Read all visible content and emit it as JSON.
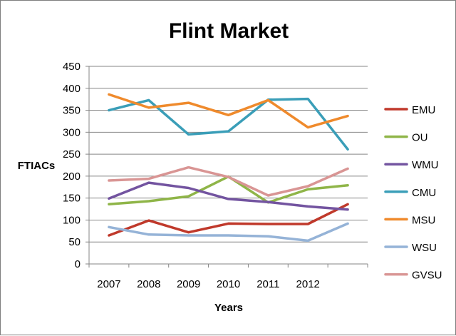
{
  "chart_data": {
    "type": "line",
    "title": "Flint Market",
    "xlabel": "Years",
    "ylabel": "FTIACs",
    "categories": [
      "2007",
      "2008",
      "2009",
      "2010",
      "2011",
      "2012",
      ""
    ],
    "ylim": [
      0,
      450
    ],
    "yticks": [
      0,
      50,
      100,
      150,
      200,
      250,
      300,
      350,
      400,
      450
    ],
    "grid": true,
    "legend_position": "right",
    "series": [
      {
        "name": "EMU",
        "color": "#c0392b",
        "values": [
          65,
          99,
          72,
          92,
          91,
          91,
          136
        ]
      },
      {
        "name": "OU",
        "color": "#8fb548",
        "values": [
          136,
          143,
          154,
          199,
          140,
          170,
          179
        ]
      },
      {
        "name": "WMU",
        "color": "#7354a0",
        "values": [
          149,
          185,
          173,
          148,
          141,
          131,
          124
        ]
      },
      {
        "name": "CMU",
        "color": "#3a9eb8",
        "values": [
          350,
          373,
          295,
          302,
          374,
          376,
          261
        ]
      },
      {
        "name": "MSU",
        "color": "#ef8a2c",
        "values": [
          386,
          356,
          367,
          339,
          373,
          311,
          337
        ]
      },
      {
        "name": "WSU",
        "color": "#95b3d7",
        "values": [
          84,
          67,
          65,
          65,
          63,
          53,
          92
        ]
      },
      {
        "name": "GVSU",
        "color": "#d99594",
        "values": [
          190,
          194,
          220,
          198,
          156,
          177,
          217
        ]
      }
    ]
  }
}
